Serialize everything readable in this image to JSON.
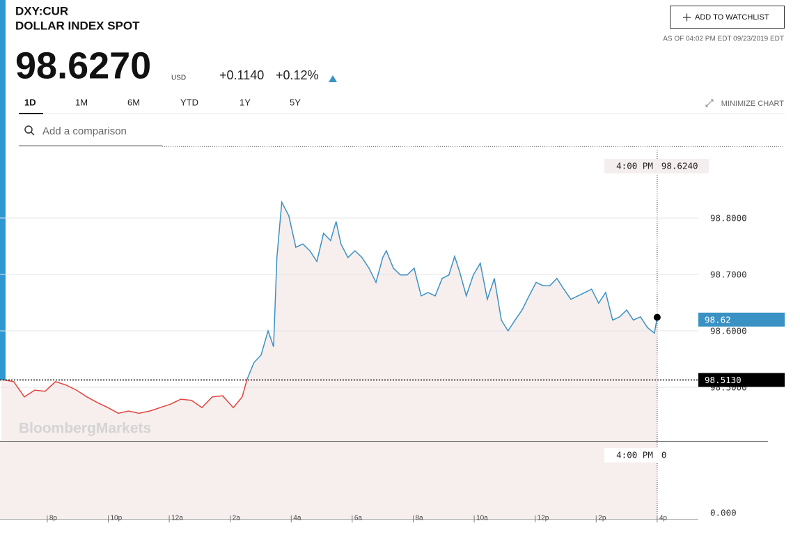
{
  "header": {
    "symbol": "DXY:CUR",
    "name": "DOLLAR INDEX SPOT",
    "price": "98.6270",
    "currency": "USD",
    "change": "+0.1140",
    "change_pct": "+0.12%",
    "as_of": "AS OF 04:02 PM EDT 09/23/2019 EDT",
    "watchlist_button": "ADD TO WATCHLIST"
  },
  "tabs": [
    "1D",
    "1M",
    "6M",
    "YTD",
    "1Y",
    "5Y"
  ],
  "minimize": "MINIMIZE CHART",
  "search_placeholder": "Add a comparison",
  "watermark": "BloombergMarkets",
  "chart_data": {
    "type": "line",
    "x": [
      18.49,
      18.9,
      19.25,
      19.59,
      19.93,
      20.27,
      20.62,
      20.96,
      21.3,
      21.64,
      21.99,
      22.33,
      22.67,
      23.01,
      23.36,
      23.7,
      24.04,
      24.38,
      24.73,
      25.07,
      25.41,
      25.75,
      26.1,
      26.39,
      26.55,
      26.78,
      27.01,
      27.24,
      27.42,
      27.53,
      27.69,
      27.92,
      28.15,
      28.38,
      28.61,
      28.84,
      29.06,
      29.29,
      29.47,
      29.63,
      29.86,
      30.09,
      30.32,
      30.55,
      30.78,
      31.0,
      31.12,
      31.35,
      31.58,
      31.8,
      32.03,
      32.26,
      32.49,
      32.72,
      32.95,
      33.17,
      33.36,
      33.52,
      33.74,
      33.97,
      34.2,
      34.43,
      34.66,
      34.89,
      35.11,
      35.34,
      35.57,
      35.8,
      36.03,
      36.26,
      36.48,
      36.71,
      36.94,
      37.17,
      37.4,
      37.63,
      37.85,
      38.08,
      38.31,
      38.54,
      38.77,
      39.0,
      39.22,
      39.45,
      39.68,
      39.91,
      40.0
    ],
    "values": [
      98.514,
      98.51,
      98.483,
      98.495,
      98.493,
      98.51,
      98.504,
      98.495,
      98.483,
      98.473,
      98.464,
      98.454,
      98.458,
      98.454,
      98.458,
      98.464,
      98.47,
      98.479,
      98.477,
      98.464,
      98.483,
      98.485,
      98.464,
      98.483,
      98.514,
      98.544,
      98.557,
      98.6,
      98.572,
      98.73,
      98.828,
      98.804,
      98.748,
      98.754,
      98.742,
      98.723,
      98.773,
      98.76,
      98.794,
      98.754,
      98.73,
      98.742,
      98.73,
      98.711,
      98.686,
      98.73,
      98.742,
      98.711,
      98.699,
      98.699,
      98.711,
      98.662,
      98.668,
      98.662,
      98.693,
      98.699,
      98.732,
      98.705,
      98.662,
      98.699,
      98.72,
      98.656,
      98.693,
      98.619,
      98.6,
      98.619,
      98.637,
      98.662,
      98.686,
      98.68,
      98.68,
      98.693,
      98.674,
      98.656,
      98.662,
      98.668,
      98.674,
      98.649,
      98.668,
      98.619,
      98.625,
      98.637,
      98.619,
      98.625,
      98.606,
      98.596,
      98.624
    ],
    "color_above": "#3a92c4",
    "color_below": "#e2443e",
    "area_color": "#f7eeee",
    "xlim": [
      18.45,
      41.35
    ],
    "xticks": [
      {
        "value": 20,
        "label": "8p"
      },
      {
        "value": 22,
        "label": "10p"
      },
      {
        "value": 24,
        "label": "12a"
      },
      {
        "value": 26,
        "label": "2a"
      },
      {
        "value": 28,
        "label": "4a"
      },
      {
        "value": 30,
        "label": "6a"
      },
      {
        "value": 32,
        "label": "8a"
      },
      {
        "value": 34,
        "label": "10a"
      },
      {
        "value": 36,
        "label": "12p"
      },
      {
        "value": 38,
        "label": "2p"
      },
      {
        "value": 40,
        "label": "4p"
      }
    ],
    "ylim": [
      98.405,
      98.921
    ],
    "yticks": [
      {
        "value": 98.8,
        "label": "98.8000"
      },
      {
        "value": 98.7,
        "label": "98.7000"
      },
      {
        "value": 98.6,
        "label": "98.6000"
      },
      {
        "value": 98.5,
        "label": "98.5000"
      }
    ],
    "grid": true,
    "reference_line": {
      "value": 98.513,
      "label": "98.5130"
    },
    "last": {
      "value": 98.62,
      "label": "98.62"
    },
    "crosshair": {
      "x": 40,
      "x_label": "4:00 PM",
      "value": 98.624,
      "label": "98.6240"
    },
    "volume": {
      "yticks": [
        {
          "value": 0,
          "label": "0.000"
        }
      ],
      "crosshair_x_label": "4:00 PM",
      "crosshair_value": 0
    }
  }
}
